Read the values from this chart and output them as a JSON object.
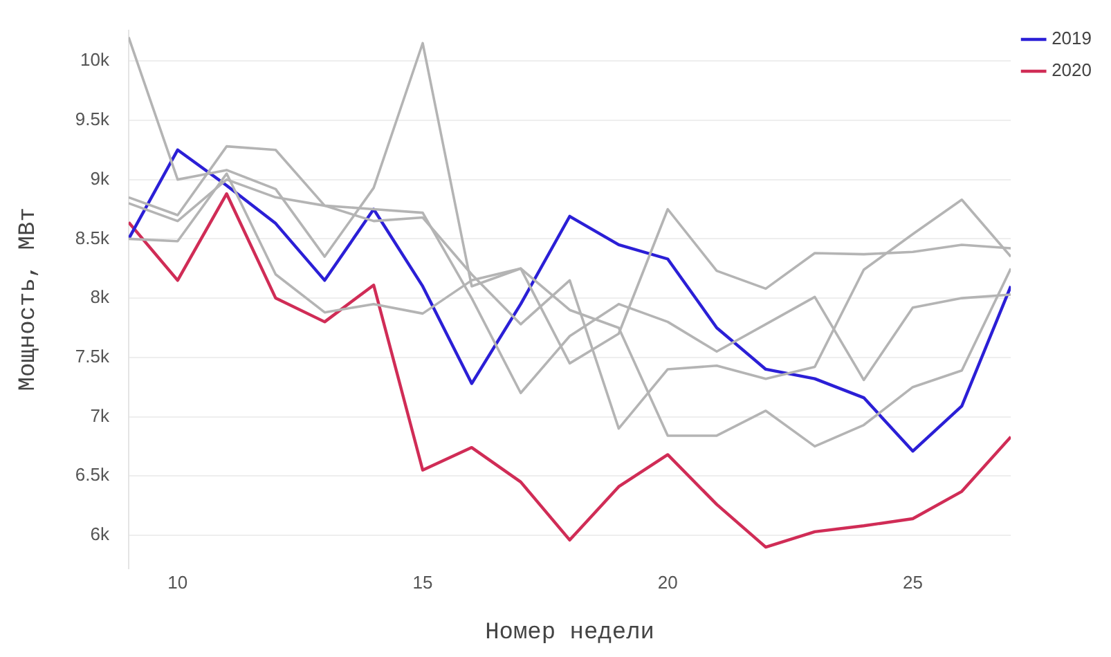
{
  "chart_data": {
    "type": "line",
    "xlabel": "Номер недели",
    "ylabel": "Мощность, МВт",
    "x": [
      9,
      10,
      11,
      12,
      13,
      14,
      15,
      16,
      17,
      18,
      19,
      20,
      21,
      22,
      23,
      24,
      25,
      26,
      27
    ],
    "series": [
      {
        "color": "#b4b4b4",
        "values": [
          10200,
          9000,
          9080,
          8920,
          8350,
          8930,
          10150,
          8100,
          8250,
          7450,
          7700,
          8750,
          8230,
          8080,
          8380,
          8370,
          8390,
          8450,
          8420
        ]
      },
      {
        "color": "#b4b4b4",
        "values": [
          8850,
          8700,
          9280,
          9250,
          8780,
          8650,
          8680,
          8200,
          7780,
          8150,
          6900,
          7400,
          7430,
          7320,
          7420,
          8240,
          8540,
          8830,
          8350
        ]
      },
      {
        "color": "#b4b4b4",
        "values": [
          8800,
          8650,
          9000,
          8850,
          8780,
          8750,
          8720,
          8000,
          7200,
          7680,
          7950,
          7800,
          7550,
          7780,
          8010,
          7310,
          7920,
          8000,
          8030
        ]
      },
      {
        "color": "#b4b4b4",
        "values": [
          8500,
          8480,
          9050,
          8200,
          7880,
          7950,
          7870,
          8150,
          8250,
          7900,
          7750,
          6840,
          6840,
          7050,
          6750,
          6930,
          7250,
          7390,
          8250
        ]
      },
      {
        "name": "2019",
        "color": "#2b1fd6",
        "values": [
          8500,
          9250,
          8950,
          8630,
          8150,
          8750,
          8100,
          7280,
          7950,
          8690,
          8450,
          8330,
          7750,
          7400,
          7320,
          7160,
          6710,
          7090,
          8100
        ]
      },
      {
        "name": "2020",
        "color": "#d02c56",
        "values": [
          8640,
          8150,
          8880,
          8000,
          7800,
          8110,
          6550,
          6740,
          6450,
          5960,
          6410,
          6680,
          6260,
          5900,
          6030,
          6080,
          6140,
          6370,
          6830
        ]
      }
    ],
    "xlim": [
      9,
      27
    ],
    "xticks": [
      10,
      15,
      20,
      25
    ],
    "ylim": [
      5720,
      10260
    ],
    "yticks": [
      {
        "value": 6000,
        "label": "6k"
      },
      {
        "value": 6500,
        "label": "6.5k"
      },
      {
        "value": 7000,
        "label": "7k"
      },
      {
        "value": 7500,
        "label": "7.5k"
      },
      {
        "value": 8000,
        "label": "8k"
      },
      {
        "value": 8500,
        "label": "8.5k"
      },
      {
        "value": 9000,
        "label": "9k"
      },
      {
        "value": 9500,
        "label": "9.5k"
      },
      {
        "value": 10000,
        "label": "10k"
      }
    ],
    "grid": "y",
    "legend": "top right",
    "marker": "none",
    "line_style": "solid"
  }
}
